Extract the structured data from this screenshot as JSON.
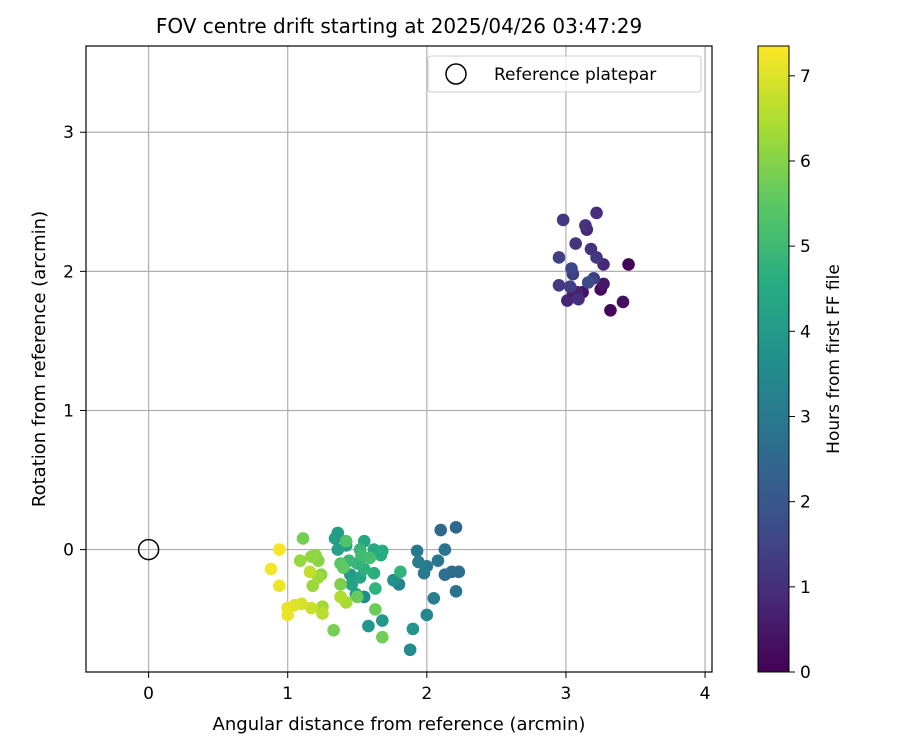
{
  "chart_data": {
    "type": "scatter",
    "title": "FOV centre drift starting at 2025/04/26 03:47:29",
    "xlabel": "Angular distance from reference (arcmin)",
    "ylabel": "Rotation from reference (arcmin)",
    "xlim": [
      -0.45,
      4.05
    ],
    "ylim": [
      -0.88,
      3.62
    ],
    "xticks": [
      0,
      1,
      2,
      3,
      4
    ],
    "yticks": [
      0,
      1,
      2,
      3
    ],
    "grid": true,
    "legend": {
      "position": "top-right",
      "entries": [
        "Reference platepar"
      ]
    },
    "reference_point": {
      "x": 0,
      "y": 0
    },
    "colorbar": {
      "label": "Hours from first FF file",
      "min": 0,
      "max": 7.35,
      "ticks": [
        0,
        1,
        2,
        3,
        4,
        5,
        6,
        7
      ],
      "colormap": "viridis"
    },
    "points": [
      {
        "x": 3.45,
        "y": 2.05,
        "t": 0.05
      },
      {
        "x": 3.32,
        "y": 1.72,
        "t": 0.1
      },
      {
        "x": 3.25,
        "y": 1.87,
        "t": 0.2
      },
      {
        "x": 3.41,
        "y": 1.78,
        "t": 0.3
      },
      {
        "x": 3.12,
        "y": 1.85,
        "t": 0.4
      },
      {
        "x": 3.27,
        "y": 1.91,
        "t": 0.5
      },
      {
        "x": 3.05,
        "y": 1.83,
        "t": 0.6
      },
      {
        "x": 3.08,
        "y": 1.85,
        "t": 0.7
      },
      {
        "x": 3.01,
        "y": 1.79,
        "t": 0.8
      },
      {
        "x": 3.27,
        "y": 2.05,
        "t": 0.85
      },
      {
        "x": 3.15,
        "y": 2.3,
        "t": 0.9
      },
      {
        "x": 3.22,
        "y": 2.42,
        "t": 0.95
      },
      {
        "x": 3.09,
        "y": 1.8,
        "t": 1.0
      },
      {
        "x": 3.14,
        "y": 2.33,
        "t": 1.05
      },
      {
        "x": 3.18,
        "y": 2.16,
        "t": 1.1
      },
      {
        "x": 3.07,
        "y": 2.2,
        "t": 1.15
      },
      {
        "x": 3.22,
        "y": 2.1,
        "t": 1.2
      },
      {
        "x": 2.98,
        "y": 2.37,
        "t": 1.25
      },
      {
        "x": 2.95,
        "y": 1.9,
        "t": 1.3
      },
      {
        "x": 3.05,
        "y": 1.98,
        "t": 1.35
      },
      {
        "x": 3.03,
        "y": 1.89,
        "t": 1.4
      },
      {
        "x": 2.95,
        "y": 2.1,
        "t": 1.45
      },
      {
        "x": 3.2,
        "y": 1.95,
        "t": 1.5
      },
      {
        "x": 3.04,
        "y": 2.02,
        "t": 1.6
      },
      {
        "x": 3.16,
        "y": 1.92,
        "t": 1.7
      },
      {
        "x": 2.21,
        "y": 0.16,
        "t": 2.5
      },
      {
        "x": 2.1,
        "y": 0.14,
        "t": 2.55
      },
      {
        "x": 2.23,
        "y": -0.16,
        "t": 2.6
      },
      {
        "x": 2.18,
        "y": -0.16,
        "t": 2.65
      },
      {
        "x": 2.13,
        "y": -0.18,
        "t": 2.7
      },
      {
        "x": 2.21,
        "y": -0.3,
        "t": 2.8
      },
      {
        "x": 2.13,
        "y": 0.0,
        "t": 2.85
      },
      {
        "x": 2.08,
        "y": -0.08,
        "t": 2.9
      },
      {
        "x": 1.98,
        "y": -0.17,
        "t": 2.95
      },
      {
        "x": 1.93,
        "y": -0.01,
        "t": 3.0
      },
      {
        "x": 2.0,
        "y": -0.12,
        "t": 3.05
      },
      {
        "x": 1.94,
        "y": -0.09,
        "t": 3.1
      },
      {
        "x": 2.05,
        "y": -0.35,
        "t": 3.2
      },
      {
        "x": 1.8,
        "y": -0.25,
        "t": 3.3
      },
      {
        "x": 2.0,
        "y": -0.47,
        "t": 3.4
      },
      {
        "x": 1.88,
        "y": -0.72,
        "t": 3.5
      },
      {
        "x": 1.55,
        "y": -0.34,
        "t": 3.6
      },
      {
        "x": 1.76,
        "y": -0.22,
        "t": 3.7
      },
      {
        "x": 1.9,
        "y": -0.57,
        "t": 3.8
      },
      {
        "x": 1.58,
        "y": -0.55,
        "t": 3.85
      },
      {
        "x": 1.68,
        "y": -0.51,
        "t": 3.9
      },
      {
        "x": 1.45,
        "y": -0.18,
        "t": 4.0
      },
      {
        "x": 1.36,
        "y": 0.12,
        "t": 4.05
      },
      {
        "x": 1.34,
        "y": 0.08,
        "t": 4.1
      },
      {
        "x": 1.42,
        "y": 0.03,
        "t": 4.15
      },
      {
        "x": 1.36,
        "y": 0.0,
        "t": 4.2
      },
      {
        "x": 1.46,
        "y": -0.25,
        "t": 4.25
      },
      {
        "x": 1.49,
        "y": -0.32,
        "t": 4.3
      },
      {
        "x": 1.52,
        "y": -0.2,
        "t": 4.35
      },
      {
        "x": 1.55,
        "y": 0.06,
        "t": 4.4
      },
      {
        "x": 1.62,
        "y": 0.0,
        "t": 4.45
      },
      {
        "x": 1.68,
        "y": -0.01,
        "t": 4.5
      },
      {
        "x": 1.54,
        "y": -0.05,
        "t": 4.55
      },
      {
        "x": 1.67,
        "y": -0.04,
        "t": 4.6
      },
      {
        "x": 1.62,
        "y": -0.17,
        "t": 4.65
      },
      {
        "x": 1.55,
        "y": -0.14,
        "t": 4.7
      },
      {
        "x": 1.63,
        "y": -0.28,
        "t": 4.75
      },
      {
        "x": 1.81,
        "y": -0.16,
        "t": 4.8
      },
      {
        "x": 1.5,
        "y": -0.1,
        "t": 4.85
      },
      {
        "x": 1.52,
        "y": 0.0,
        "t": 4.9
      },
      {
        "x": 1.44,
        "y": -0.08,
        "t": 4.95
      },
      {
        "x": 1.53,
        "y": -0.04,
        "t": 5.05
      },
      {
        "x": 1.59,
        "y": -0.06,
        "t": 5.15
      },
      {
        "x": 1.42,
        "y": 0.06,
        "t": 5.3
      },
      {
        "x": 1.38,
        "y": -0.1,
        "t": 5.45
      },
      {
        "x": 1.4,
        "y": -0.13,
        "t": 5.55
      },
      {
        "x": 1.5,
        "y": -0.34,
        "t": 5.65
      },
      {
        "x": 1.63,
        "y": -0.43,
        "t": 5.7
      },
      {
        "x": 1.68,
        "y": -0.63,
        "t": 5.75
      },
      {
        "x": 1.11,
        "y": 0.08,
        "t": 5.8
      },
      {
        "x": 1.33,
        "y": -0.58,
        "t": 5.85
      },
      {
        "x": 1.38,
        "y": -0.25,
        "t": 5.9
      },
      {
        "x": 1.22,
        "y": -0.08,
        "t": 6.0
      },
      {
        "x": 1.24,
        "y": -0.18,
        "t": 6.05
      },
      {
        "x": 1.2,
        "y": -0.04,
        "t": 6.1
      },
      {
        "x": 1.17,
        "y": -0.05,
        "t": 6.15
      },
      {
        "x": 1.09,
        "y": -0.08,
        "t": 6.2
      },
      {
        "x": 1.18,
        "y": -0.26,
        "t": 6.25
      },
      {
        "x": 1.22,
        "y": -0.2,
        "t": 6.3
      },
      {
        "x": 1.25,
        "y": -0.41,
        "t": 6.35
      },
      {
        "x": 1.42,
        "y": -0.38,
        "t": 6.4
      },
      {
        "x": 1.38,
        "y": -0.34,
        "t": 6.5
      },
      {
        "x": 1.25,
        "y": -0.46,
        "t": 6.6
      },
      {
        "x": 1.16,
        "y": -0.16,
        "t": 6.7
      },
      {
        "x": 1.17,
        "y": -0.42,
        "t": 6.8
      },
      {
        "x": 1.1,
        "y": -0.39,
        "t": 6.9
      },
      {
        "x": 1.05,
        "y": -0.4,
        "t": 7.0
      },
      {
        "x": 1.0,
        "y": -0.42,
        "t": 7.1
      },
      {
        "x": 1.0,
        "y": -0.47,
        "t": 7.15
      },
      {
        "x": 0.94,
        "y": -0.26,
        "t": 7.2
      },
      {
        "x": 0.88,
        "y": -0.14,
        "t": 7.25
      },
      {
        "x": 0.94,
        "y": 0.0,
        "t": 7.3
      }
    ]
  }
}
